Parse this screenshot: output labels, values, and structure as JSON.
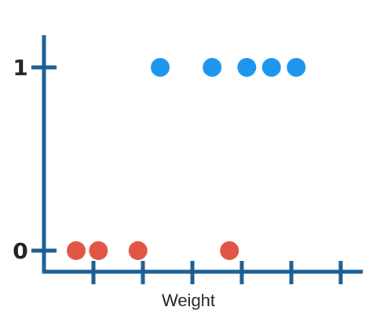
{
  "chart_data": {
    "type": "scatter",
    "title": "",
    "xlabel": "Weight",
    "ylabel": "",
    "y_ticks": [
      {
        "value": 0,
        "label": "0"
      },
      {
        "value": 1,
        "label": "1"
      }
    ],
    "x_tick_count": 6,
    "xlim": [
      0,
      6.2
    ],
    "ylim": [
      0,
      1
    ],
    "grid": false,
    "legend": "none",
    "colors": {
      "axis": "#1a5e93",
      "class_0": "#e05544",
      "class_1": "#1e96ee",
      "text": "#222222"
    },
    "series": [
      {
        "color_key": "class_0",
        "points": [
          {
            "x": 0.65,
            "y": 0
          },
          {
            "x": 1.1,
            "y": 0
          },
          {
            "x": 1.9,
            "y": 0
          },
          {
            "x": 3.75,
            "y": 0
          }
        ]
      },
      {
        "color_key": "class_1",
        "points": [
          {
            "x": 2.35,
            "y": 1
          },
          {
            "x": 3.4,
            "y": 1
          },
          {
            "x": 4.1,
            "y": 1
          },
          {
            "x": 4.6,
            "y": 1
          },
          {
            "x": 5.1,
            "y": 1
          }
        ]
      }
    ]
  }
}
